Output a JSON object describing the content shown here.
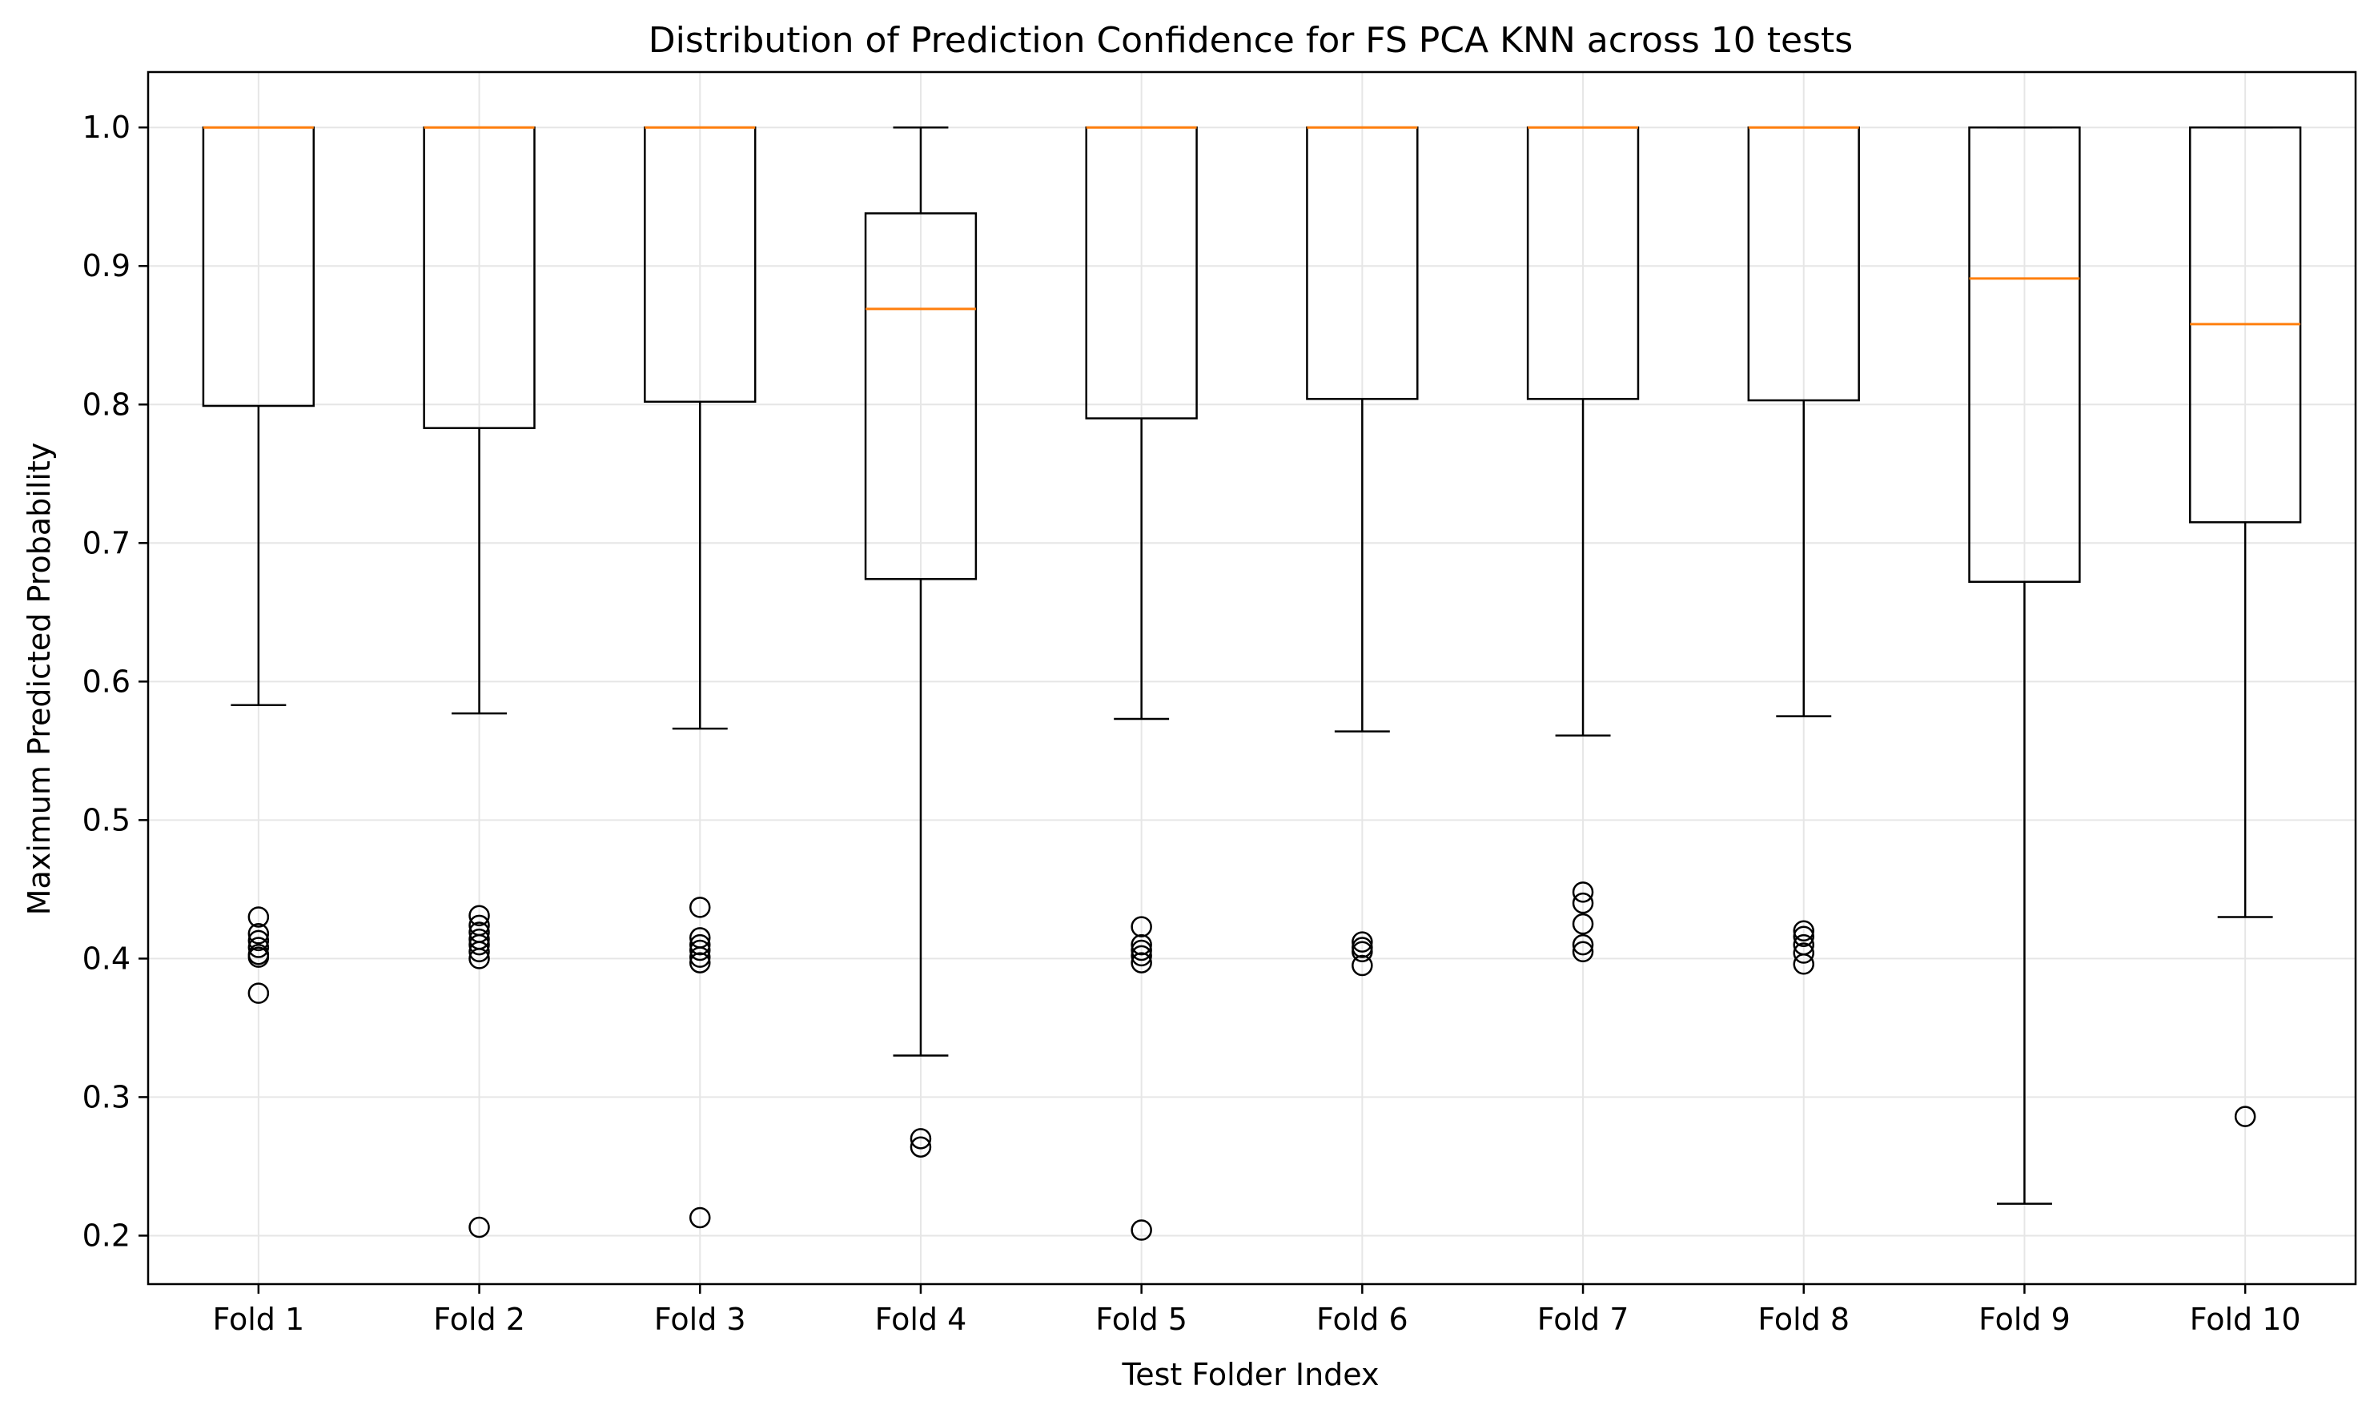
{
  "chart_data": {
    "type": "boxplot",
    "title": "Distribution of Prediction Confidence for FS PCA KNN across 10 tests",
    "xlabel": "Test Folder Index",
    "ylabel": "Maximum Predicted Probability",
    "ylim": [
      0.165,
      1.04
    ],
    "yticks": [
      0.2,
      0.3,
      0.4,
      0.5,
      0.6,
      0.7,
      0.8,
      0.9,
      1.0
    ],
    "ytick_labels": [
      "0.2",
      "0.3",
      "0.4",
      "0.5",
      "0.6",
      "0.7",
      "0.8",
      "0.9",
      "1.0"
    ],
    "grid": true,
    "colors": {
      "box": "#000000",
      "median": "#ff7f0e",
      "grid": "#e6e6e6"
    },
    "categories": [
      "Fold 1",
      "Fold 2",
      "Fold 3",
      "Fold 4",
      "Fold 5",
      "Fold 6",
      "Fold 7",
      "Fold 8",
      "Fold 9",
      "Fold 10"
    ],
    "boxes": [
      {
        "whisker_low": 0.583,
        "q1": 0.799,
        "median": 1.0,
        "q3": 1.0,
        "whisker_high": 1.0,
        "outliers": [
          0.43,
          0.418,
          0.413,
          0.408,
          0.403,
          0.401,
          0.375
        ]
      },
      {
        "whisker_low": 0.577,
        "q1": 0.783,
        "median": 1.0,
        "q3": 1.0,
        "whisker_high": 1.0,
        "outliers": [
          0.431,
          0.424,
          0.419,
          0.414,
          0.41,
          0.405,
          0.4,
          0.206
        ]
      },
      {
        "whisker_low": 0.566,
        "q1": 0.802,
        "median": 1.0,
        "q3": 1.0,
        "whisker_high": 1.0,
        "outliers": [
          0.437,
          0.415,
          0.41,
          0.406,
          0.401,
          0.397,
          0.213
        ]
      },
      {
        "whisker_low": 0.33,
        "q1": 0.674,
        "median": 0.869,
        "q3": 0.938,
        "whisker_high": 1.0,
        "outliers": [
          0.27,
          0.264
        ]
      },
      {
        "whisker_low": 0.573,
        "q1": 0.79,
        "median": 1.0,
        "q3": 1.0,
        "whisker_high": 1.0,
        "outliers": [
          0.423,
          0.41,
          0.406,
          0.402,
          0.397,
          0.204
        ]
      },
      {
        "whisker_low": 0.564,
        "q1": 0.804,
        "median": 1.0,
        "q3": 1.0,
        "whisker_high": 1.0,
        "outliers": [
          0.412,
          0.408,
          0.405,
          0.395
        ]
      },
      {
        "whisker_low": 0.561,
        "q1": 0.804,
        "median": 1.0,
        "q3": 1.0,
        "whisker_high": 1.0,
        "outliers": [
          0.448,
          0.44,
          0.425,
          0.41,
          0.405
        ]
      },
      {
        "whisker_low": 0.575,
        "q1": 0.803,
        "median": 1.0,
        "q3": 1.0,
        "whisker_high": 1.0,
        "outliers": [
          0.42,
          0.416,
          0.41,
          0.404,
          0.396
        ]
      },
      {
        "whisker_low": 0.223,
        "q1": 0.672,
        "median": 0.891,
        "q3": 1.0,
        "whisker_high": 1.0,
        "outliers": []
      },
      {
        "whisker_low": 0.43,
        "q1": 0.715,
        "median": 0.858,
        "q3": 1.0,
        "whisker_high": 1.0,
        "outliers": [
          0.286
        ]
      }
    ]
  }
}
